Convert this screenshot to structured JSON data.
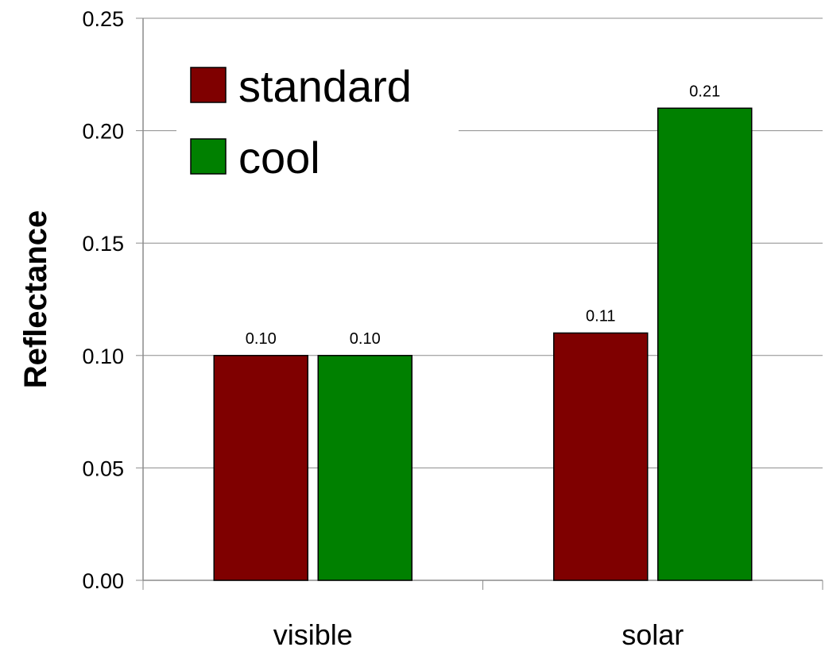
{
  "chart_data": {
    "type": "bar",
    "categories": [
      "visible",
      "solar"
    ],
    "series": [
      {
        "name": "standard",
        "color": "#7f0000",
        "values": [
          0.1,
          0.11
        ],
        "labels": [
          "0.10",
          "0.11"
        ]
      },
      {
        "name": "cool",
        "color": "#008000",
        "values": [
          0.1,
          0.21
        ],
        "labels": [
          "0.10",
          "0.21"
        ]
      }
    ],
    "title": "",
    "xlabel": "",
    "ylabel": "Reflectance",
    "ylim": [
      0,
      0.25
    ],
    "yticks": [
      0,
      0.05,
      0.1,
      0.15,
      0.2,
      0.25
    ],
    "ytick_labels": [
      "0.00",
      "0.05",
      "0.10",
      "0.15",
      "0.20",
      "0.25"
    ],
    "grid": "horizontal",
    "legend_position": "top-left inside plot"
  }
}
